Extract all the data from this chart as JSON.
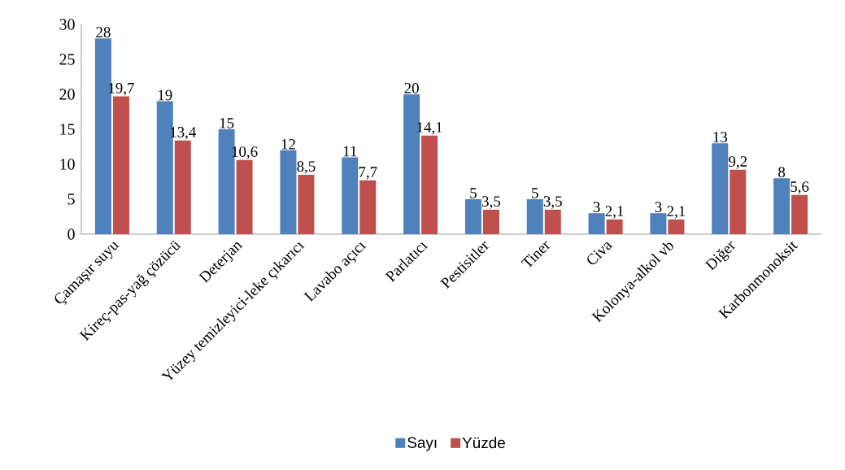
{
  "chart_data": {
    "type": "bar",
    "categories": [
      "Çamaşır suyu",
      "Kireç-pas-yağ çözücü",
      "Deterjan",
      "Yüzey temizleyici-leke çıkarıcı",
      "Lavabo açıcı",
      "Parlatıcı",
      "Pestisitler",
      "Tiner",
      "Civa",
      "Kolonya-alkol vb",
      "Diğer",
      "Karbonmonoksit"
    ],
    "series": [
      {
        "name": "Sayı",
        "color": "#4f81bd",
        "values": [
          28,
          19,
          15,
          12,
          11,
          20,
          5,
          5,
          3,
          3,
          13,
          8
        ],
        "value_labels": [
          "28",
          "19",
          "15",
          "12",
          "11",
          "20",
          "5",
          "5",
          "3",
          "3",
          "13",
          "8"
        ]
      },
      {
        "name": "Yüzde",
        "color": "#c0504d",
        "values": [
          19.7,
          13.4,
          10.6,
          8.5,
          7.7,
          14.1,
          3.5,
          3.5,
          2.1,
          2.1,
          9.2,
          5.6
        ],
        "value_labels": [
          "19,7",
          "13,4",
          "10,6",
          "8,5",
          "7,7",
          "14,1",
          "3,5",
          "3,5",
          "2,1",
          "2,1",
          "9,2",
          "5,6"
        ]
      }
    ],
    "ylim": [
      0,
      30
    ],
    "yticks": [
      0,
      5,
      10,
      15,
      20,
      25,
      30
    ],
    "grid": false,
    "legend": "bottom"
  }
}
